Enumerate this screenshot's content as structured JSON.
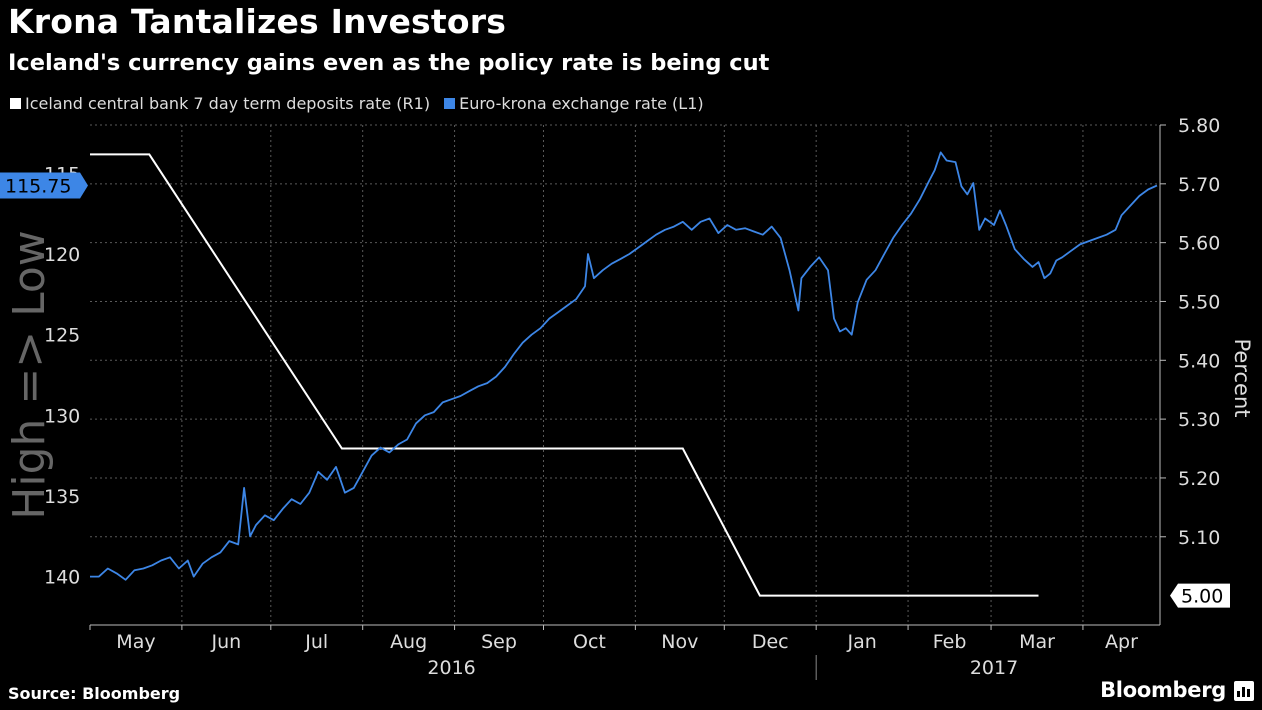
{
  "header": {
    "title": "Krona Tantalizes Investors",
    "subtitle": "Iceland's currency gains even as the policy rate is being cut"
  },
  "footer": {
    "source": "Source: Bloomberg",
    "brand": "Bloomberg"
  },
  "colors": {
    "background": "#000000",
    "rate_line": "#ffffff",
    "fx_line": "#3d86e6",
    "grid": "#5a5a5a"
  },
  "chart_data": {
    "type": "line",
    "title": "Krona Tantalizes Investors",
    "subtitle": "Iceland's currency gains even as the policy rate is being cut",
    "left_axis": {
      "label": "High => Low",
      "inverted": true,
      "range": [
        143,
        112
      ],
      "ticks": [
        "115",
        "120",
        "125",
        "130",
        "135",
        "140"
      ],
      "tick_values": [
        115,
        120,
        125,
        130,
        135,
        140
      ]
    },
    "right_axis": {
      "label": "Percent",
      "range": [
        4.95,
        5.8
      ],
      "ticks": [
        "5.80",
        "5.70",
        "5.60",
        "5.50",
        "5.40",
        "5.30",
        "5.20",
        "5.10"
      ],
      "tick_values": [
        5.8,
        5.7,
        5.6,
        5.5,
        5.4,
        5.3,
        5.2,
        5.1
      ]
    },
    "x_axis": {
      "months": [
        "May",
        "Jun",
        "Jul",
        "Aug",
        "Sep",
        "Oct",
        "Nov",
        "Dec",
        "Jan",
        "Feb",
        "Mar",
        "Apr"
      ],
      "month_start_days": [
        0,
        31,
        61,
        92,
        123,
        153,
        184,
        214,
        245,
        276,
        304,
        335
      ],
      "years": [
        {
          "label": "2016",
          "center_day": 122
        },
        {
          "label": "2017",
          "center_day": 305
        }
      ],
      "year_divider_day": 245,
      "range_days": [
        0,
        361
      ]
    },
    "series": [
      {
        "name": "Iceland central bank 7 day term deposits rate (R1)",
        "axis": "right",
        "color": "#ffffff",
        "last_value_label": "5.00",
        "points": [
          [
            0,
            5.75
          ],
          [
            20,
            5.75
          ],
          [
            85,
            5.25
          ],
          [
            86,
            5.25
          ],
          [
            200,
            5.25
          ],
          [
            226,
            5.0
          ],
          [
            320,
            5.0
          ]
        ]
      },
      {
        "name": "Euro-krona exchange rate (L1)",
        "axis": "left",
        "color": "#3d86e6",
        "last_value_label": "115.75",
        "points": [
          [
            0,
            140.0
          ],
          [
            3,
            140.0
          ],
          [
            6,
            139.5
          ],
          [
            9,
            139.8
          ],
          [
            12,
            140.2
          ],
          [
            15,
            139.6
          ],
          [
            18,
            139.5
          ],
          [
            21,
            139.3
          ],
          [
            24,
            139.0
          ],
          [
            27,
            138.8
          ],
          [
            30,
            139.5
          ],
          [
            33,
            139.0
          ],
          [
            35,
            140.0
          ],
          [
            38,
            139.2
          ],
          [
            41,
            138.8
          ],
          [
            44,
            138.5
          ],
          [
            47,
            137.8
          ],
          [
            50,
            138.0
          ],
          [
            52,
            134.5
          ],
          [
            54,
            137.5
          ],
          [
            56,
            136.8
          ],
          [
            59,
            136.2
          ],
          [
            62,
            136.5
          ],
          [
            65,
            135.8
          ],
          [
            68,
            135.2
          ],
          [
            71,
            135.5
          ],
          [
            74,
            134.8
          ],
          [
            77,
            133.5
          ],
          [
            80,
            134.0
          ],
          [
            83,
            133.2
          ],
          [
            86,
            134.8
          ],
          [
            89,
            134.5
          ],
          [
            92,
            133.5
          ],
          [
            95,
            132.5
          ],
          [
            98,
            132.0
          ],
          [
            101,
            132.3
          ],
          [
            104,
            131.8
          ],
          [
            107,
            131.5
          ],
          [
            110,
            130.5
          ],
          [
            113,
            130.0
          ],
          [
            116,
            129.8
          ],
          [
            119,
            129.2
          ],
          [
            122,
            129.0
          ],
          [
            125,
            128.8
          ],
          [
            128,
            128.5
          ],
          [
            131,
            128.2
          ],
          [
            134,
            128.0
          ],
          [
            137,
            127.6
          ],
          [
            140,
            127.0
          ],
          [
            143,
            126.2
          ],
          [
            146,
            125.5
          ],
          [
            149,
            125.0
          ],
          [
            152,
            124.6
          ],
          [
            155,
            124.0
          ],
          [
            158,
            123.6
          ],
          [
            161,
            123.2
          ],
          [
            164,
            122.8
          ],
          [
            167,
            122.0
          ],
          [
            168,
            120.0
          ],
          [
            170,
            121.5
          ],
          [
            173,
            121.0
          ],
          [
            176,
            120.6
          ],
          [
            179,
            120.3
          ],
          [
            182,
            120.0
          ],
          [
            185,
            119.6
          ],
          [
            188,
            119.2
          ],
          [
            191,
            118.8
          ],
          [
            194,
            118.5
          ],
          [
            197,
            118.3
          ],
          [
            200,
            118.0
          ],
          [
            203,
            118.5
          ],
          [
            206,
            118.0
          ],
          [
            209,
            117.8
          ],
          [
            212,
            118.7
          ],
          [
            215,
            118.2
          ],
          [
            218,
            118.5
          ],
          [
            221,
            118.4
          ],
          [
            224,
            118.6
          ],
          [
            227,
            118.8
          ],
          [
            230,
            118.3
          ],
          [
            233,
            119.0
          ],
          [
            236,
            121.0
          ],
          [
            239,
            123.5
          ],
          [
            240,
            121.5
          ],
          [
            243,
            120.8
          ],
          [
            246,
            120.2
          ],
          [
            249,
            121.0
          ],
          [
            251,
            124.0
          ],
          [
            253,
            124.8
          ],
          [
            255,
            124.6
          ],
          [
            257,
            125.0
          ],
          [
            259,
            123.0
          ],
          [
            262,
            121.6
          ],
          [
            265,
            121.0
          ],
          [
            268,
            120.0
          ],
          [
            271,
            119.0
          ],
          [
            274,
            118.2
          ],
          [
            277,
            117.5
          ],
          [
            280,
            116.6
          ],
          [
            283,
            115.5
          ],
          [
            285,
            114.8
          ],
          [
            287,
            113.7
          ],
          [
            289,
            114.2
          ],
          [
            292,
            114.3
          ],
          [
            294,
            115.8
          ],
          [
            296,
            116.3
          ],
          [
            298,
            115.6
          ],
          [
            300,
            118.5
          ],
          [
            302,
            117.8
          ],
          [
            305,
            118.2
          ],
          [
            307,
            117.3
          ],
          [
            309,
            118.2
          ],
          [
            312,
            119.7
          ],
          [
            315,
            120.3
          ],
          [
            318,
            120.8
          ],
          [
            320,
            120.5
          ],
          [
            322,
            121.5
          ],
          [
            324,
            121.2
          ],
          [
            326,
            120.4
          ],
          [
            328,
            120.2
          ],
          [
            331,
            119.8
          ],
          [
            334,
            119.4
          ],
          [
            337,
            119.2
          ],
          [
            340,
            119.0
          ],
          [
            343,
            118.8
          ],
          [
            346,
            118.5
          ],
          [
            348,
            117.6
          ],
          [
            351,
            117.0
          ],
          [
            354,
            116.4
          ],
          [
            357,
            116.0
          ],
          [
            360,
            115.75
          ]
        ]
      }
    ]
  }
}
